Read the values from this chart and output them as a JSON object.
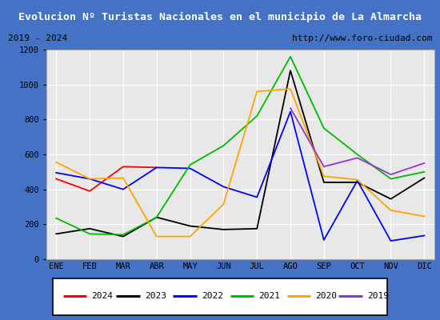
{
  "title": "Evolucion Nº Turistas Nacionales en el municipio de La Almarcha",
  "subtitle_left": "2019 - 2024",
  "subtitle_right": "http://www.foro-ciudad.com",
  "months": [
    "ENE",
    "FEB",
    "MAR",
    "ABR",
    "MAY",
    "JUN",
    "JUL",
    "AGO",
    "SEP",
    "OCT",
    "NOV",
    "DIC"
  ],
  "ylim": [
    0,
    1200
  ],
  "yticks": [
    0,
    200,
    400,
    600,
    800,
    1000,
    1200
  ],
  "series": {
    "2024": {
      "color": "#ff0000",
      "values": [
        460,
        390,
        530,
        525,
        null,
        null,
        null,
        null,
        null,
        null,
        null,
        null
      ]
    },
    "2023": {
      "color": "#000000",
      "values": [
        145,
        175,
        130,
        240,
        190,
        170,
        175,
        1080,
        440,
        440,
        345,
        465
      ]
    },
    "2022": {
      "color": "#0000ff",
      "values": [
        495,
        460,
        400,
        525,
        520,
        415,
        355,
        845,
        110,
        450,
        105,
        135
      ]
    },
    "2021": {
      "color": "#00bb00",
      "values": [
        235,
        145,
        140,
        240,
        540,
        650,
        820,
        1160,
        750,
        600,
        460,
        500
      ]
    },
    "2020": {
      "color": "#ffa500",
      "values": [
        555,
        460,
        465,
        130,
        130,
        315,
        960,
        975,
        475,
        455,
        280,
        245
      ]
    },
    "2019": {
      "color": "#9933cc",
      "values": [
        null,
        null,
        null,
        null,
        null,
        null,
        null,
        865,
        530,
        580,
        485,
        550
      ]
    }
  },
  "legend_order": [
    "2024",
    "2023",
    "2022",
    "2021",
    "2020",
    "2019"
  ],
  "bg_color": "#e8e8e8",
  "title_bg": "#4472c4",
  "title_color": "#ffffff",
  "border_color": "#4472c4",
  "grid_color": "#ffffff",
  "subtitle_bg": "#d8d8d8"
}
